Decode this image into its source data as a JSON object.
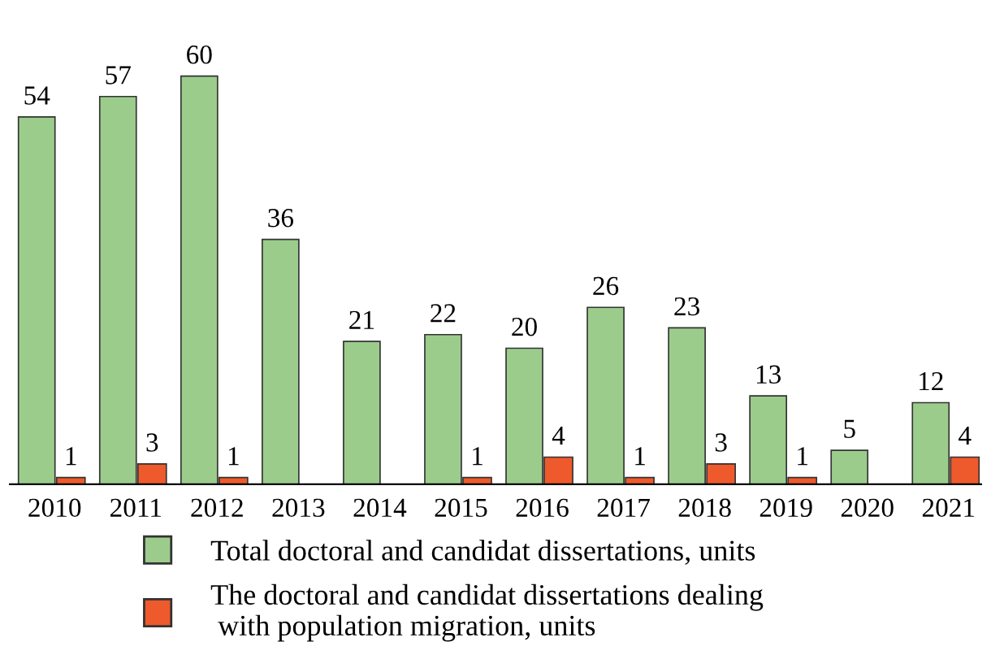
{
  "chart_data": {
    "type": "bar",
    "categories": [
      "2010",
      "2011",
      "2012",
      "2013",
      "2014",
      "2015",
      "2016",
      "2017",
      "2018",
      "2019",
      "2020",
      "2021"
    ],
    "series": [
      {
        "name": "Total doctoral and candidat dissertations, units",
        "color": "#9ccc8c",
        "values": [
          54,
          57,
          60,
          36,
          21,
          22,
          20,
          26,
          23,
          13,
          5,
          12
        ]
      },
      {
        "name": "The doctoral and candidat dissertations dealing\n with population migration, units",
        "color": "#ee5a2c",
        "values": [
          1,
          3,
          1,
          null,
          null,
          1,
          4,
          1,
          3,
          1,
          null,
          4
        ]
      }
    ],
    "data_labels": true,
    "legend": "bottom",
    "grid": false
  }
}
